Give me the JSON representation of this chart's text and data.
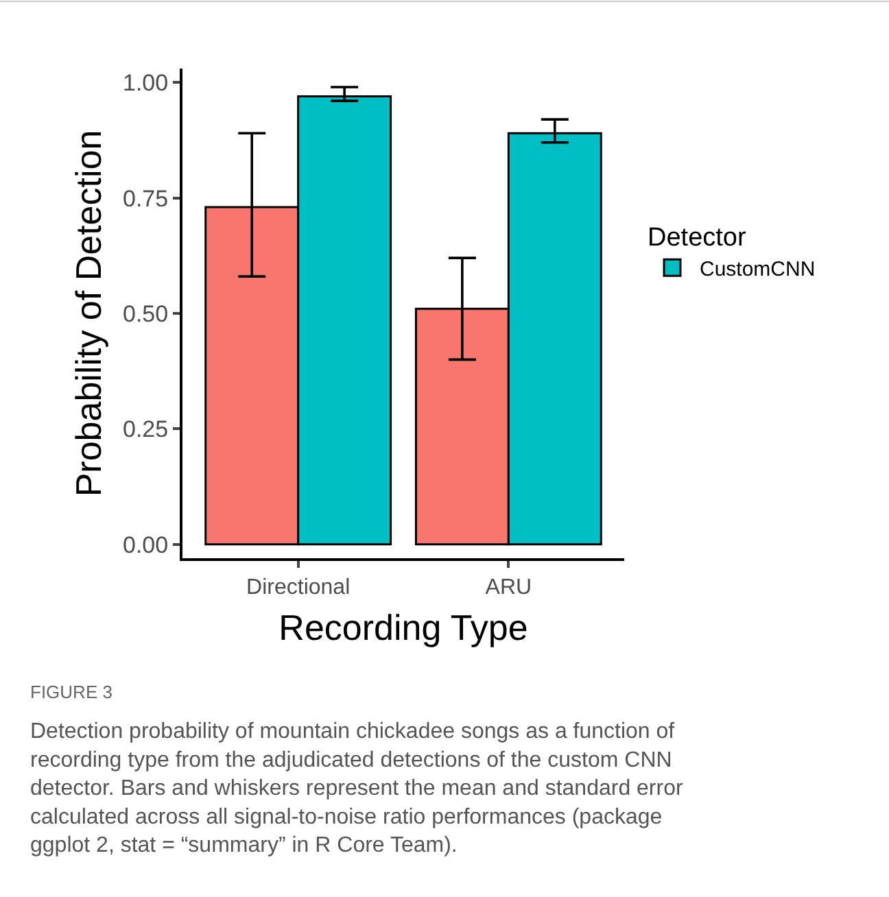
{
  "chart_data": {
    "type": "bar",
    "xlabel": "Recording Type",
    "ylabel": "Probability of Detection",
    "legend_title": "Detector",
    "categories": [
      "Directional",
      "ARU"
    ],
    "series": [
      {
        "color": "#f8766d",
        "values": [
          0.73,
          0.51
        ],
        "errors": [
          [
            0.58,
            0.89
          ],
          [
            0.4,
            0.62
          ]
        ]
      },
      {
        "name": "CustomCNN",
        "color": "#00bfc4",
        "values": [
          0.97,
          0.89
        ],
        "errors": [
          [
            0.96,
            0.99
          ],
          [
            0.87,
            0.92
          ]
        ]
      }
    ],
    "ylim": [
      -0.03,
      1.03
    ],
    "yticks": [
      {
        "value": 0,
        "label": "0.00"
      },
      {
        "value": 0.25,
        "label": "0.25"
      },
      {
        "value": 0.5,
        "label": "0.50"
      },
      {
        "value": 0.75,
        "label": "0.75"
      },
      {
        "value": 1,
        "label": "1.00"
      }
    ],
    "legend": "right",
    "annotations": [
      "FIGURE 3",
      "Detection probability of mountain chickadee songs as a function of recording type from the adjudicated detections of the custom CNN detector. Bars and whiskers represent the mean and standard error calculated across all signal-to-noise ratio performances (package ggplot 2, stat = “summary” in R Core Team)."
    ]
  }
}
